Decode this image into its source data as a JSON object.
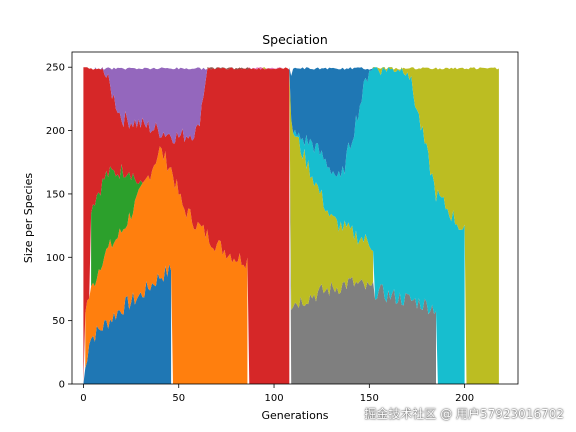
{
  "chart_data": {
    "type": "area",
    "title": "Speciation",
    "xlabel": "Generations",
    "ylabel": "Size per Species",
    "xlim": [
      -6,
      228
    ],
    "ylim": [
      0,
      262
    ],
    "xticks": [
      0,
      50,
      100,
      150,
      200
    ],
    "yticks": [
      0,
      50,
      100,
      150,
      200,
      250
    ],
    "stacked": true,
    "total_per_generation": 250,
    "generations": [
      0,
      218
    ],
    "colors": [
      "#1f77b4",
      "#ff7f0e",
      "#2ca02c",
      "#d62728",
      "#9467bd",
      "#8c564b",
      "#e377c2",
      "#7f7f7f",
      "#bcbd22",
      "#17becf"
    ],
    "species_segments": [
      {
        "x_start": 0,
        "x_end": 46,
        "lower": 0,
        "upper": [
          [
            0,
            0
          ],
          [
            3,
            35
          ],
          [
            10,
            45
          ],
          [
            20,
            60
          ],
          [
            30,
            70
          ],
          [
            40,
            85
          ],
          [
            46,
            90
          ]
        ],
        "color": "#1f77b4"
      },
      {
        "x_start": 1,
        "x_end": 86,
        "lower": "prev",
        "upper": [
          [
            1,
            60
          ],
          [
            10,
            100
          ],
          [
            20,
            120
          ],
          [
            30,
            150
          ],
          [
            40,
            185
          ],
          [
            46,
            170
          ],
          [
            52,
            140
          ],
          [
            60,
            125
          ],
          [
            70,
            110
          ],
          [
            80,
            100
          ],
          [
            86,
            98
          ]
        ],
        "color": "#ff7f0e"
      },
      {
        "x_start": 4,
        "x_end": 44,
        "lower": "prev",
        "upper": [
          [
            4,
            140
          ],
          [
            12,
            165
          ],
          [
            24,
            170
          ],
          [
            32,
            150
          ],
          [
            40,
            135
          ],
          [
            44,
            120
          ]
        ],
        "color": "#2ca02c"
      },
      {
        "x_start": 0,
        "x_end": 108,
        "lower": "prev",
        "upper": [
          [
            0,
            250
          ],
          [
            10,
            250
          ],
          [
            20,
            210
          ],
          [
            30,
            205
          ],
          [
            40,
            200
          ],
          [
            50,
            195
          ],
          [
            60,
            200
          ],
          [
            65,
            250
          ],
          [
            100,
            250
          ],
          [
            108,
            250
          ]
        ],
        "color": "#d62728"
      },
      {
        "x_start": 6,
        "x_end": 65,
        "lower": "prev",
        "upper": [
          [
            6,
            250
          ],
          [
            65,
            250
          ]
        ],
        "color": "#9467bd"
      },
      {
        "x_start": 65,
        "x_end": 88,
        "lower": "prev",
        "upper": [
          [
            65,
            250
          ],
          [
            88,
            250
          ]
        ],
        "color": "#8c564b"
      },
      {
        "x_start": 86,
        "x_end": 104,
        "lower": "prev",
        "upper": [
          [
            86,
            250
          ],
          [
            104,
            250
          ]
        ],
        "color": "#e377c2"
      },
      {
        "x_start": 104,
        "x_end": 185,
        "lower": "prev",
        "upper": [
          [
            104,
            60
          ],
          [
            120,
            70
          ],
          [
            140,
            80
          ],
          [
            160,
            70
          ],
          [
            175,
            65
          ],
          [
            185,
            60
          ]
        ],
        "color": "#7f7f7f"
      },
      {
        "x_start": 94,
        "x_end": 152,
        "lower": "prev",
        "upper": [
          [
            94,
            250
          ],
          [
            110,
            200
          ],
          [
            130,
            130
          ],
          [
            140,
            120
          ],
          [
            152,
            110
          ]
        ],
        "color": "#bcbd22"
      },
      {
        "x_start": 104,
        "x_end": 200,
        "lower": "prev",
        "upper": [
          [
            104,
            200
          ],
          [
            120,
            190
          ],
          [
            135,
            160
          ],
          [
            150,
            250
          ],
          [
            170,
            250
          ],
          [
            185,
            150
          ],
          [
            200,
            120
          ]
        ],
        "color": "#17becf"
      },
      {
        "x_start": 108,
        "x_end": 152,
        "lower": "prev",
        "upper": [
          [
            108,
            250
          ],
          [
            152,
            250
          ]
        ],
        "color": "#1f77b4"
      },
      {
        "x_start": 152,
        "x_end": 218,
        "lower": "prev",
        "upper": [
          [
            152,
            250
          ],
          [
            170,
            250
          ],
          [
            185,
            250
          ],
          [
            200,
            250
          ],
          [
            218,
            250
          ]
        ],
        "color": "#bcbd22"
      }
    ]
  },
  "watermark_text": "掘金技术社区 @ 用户57923016702"
}
